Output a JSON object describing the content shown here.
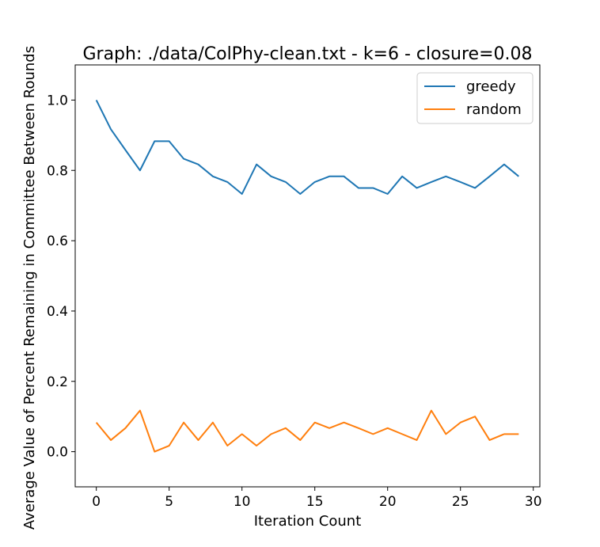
{
  "chart_data": {
    "type": "line",
    "title": "Graph: ./data/ColPhy-clean.txt - k=6 - closure=0.08",
    "xlabel": "Iteration Count",
    "ylabel": "Average Value of Percent Remaining in Committee Between Rounds",
    "xlim": [
      -1.45,
      30.45
    ],
    "ylim": [
      -0.1,
      1.1
    ],
    "xticks": [
      0,
      5,
      10,
      15,
      20,
      25,
      30
    ],
    "xtick_labels": [
      "0",
      "5",
      "10",
      "15",
      "20",
      "25",
      "30"
    ],
    "yticks": [
      0.0,
      0.2,
      0.4,
      0.6,
      0.8,
      1.0
    ],
    "ytick_labels": [
      "0.0",
      "0.2",
      "0.4",
      "0.6",
      "0.8",
      "1.0"
    ],
    "grid": false,
    "legend_position": "top-right",
    "x": [
      0,
      1,
      2,
      3,
      4,
      5,
      6,
      7,
      8,
      9,
      10,
      11,
      12,
      13,
      14,
      15,
      16,
      17,
      18,
      19,
      20,
      21,
      22,
      23,
      24,
      25,
      26,
      27,
      28,
      29
    ],
    "series": [
      {
        "name": "greedy",
        "color": "#1f77b4",
        "values": [
          1.0,
          0.917,
          0.858,
          0.8,
          0.883,
          0.883,
          0.833,
          0.817,
          0.783,
          0.767,
          0.733,
          0.817,
          0.783,
          0.767,
          0.733,
          0.767,
          0.783,
          0.783,
          0.75,
          0.75,
          0.733,
          0.783,
          0.75,
          0.767,
          0.783,
          0.767,
          0.75,
          0.783,
          0.817,
          0.783
        ]
      },
      {
        "name": "random",
        "color": "#ff7f0e",
        "values": [
          0.083,
          0.033,
          0.067,
          0.117,
          0.0,
          0.017,
          0.083,
          0.033,
          0.083,
          0.017,
          0.05,
          0.017,
          0.05,
          0.067,
          0.033,
          0.083,
          0.067,
          0.083,
          0.067,
          0.05,
          0.067,
          0.05,
          0.033,
          0.117,
          0.05,
          0.083,
          0.1,
          0.033,
          0.05,
          0.05
        ]
      }
    ]
  }
}
